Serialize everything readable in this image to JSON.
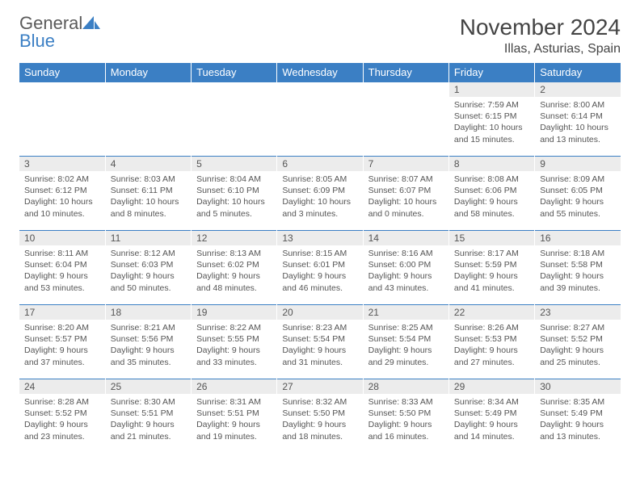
{
  "logo": {
    "word1": "General",
    "word2": "Blue"
  },
  "title": "November 2024",
  "subtitle": "Illas, Asturias, Spain",
  "colors": {
    "header_bg": "#3b7fc4",
    "header_text": "#ffffff",
    "daynum_bg": "#ececec",
    "text": "#555555",
    "row_border": "#3b7fc4",
    "logo_gray": "#5a5a5a",
    "logo_blue": "#3b7fc4"
  },
  "weekdays": [
    "Sunday",
    "Monday",
    "Tuesday",
    "Wednesday",
    "Thursday",
    "Friday",
    "Saturday"
  ],
  "grid": [
    [
      "",
      "",
      "",
      "",
      "",
      {
        "n": "1",
        "sr": "7:59 AM",
        "ss": "6:15 PM",
        "dl": "10 hours and 15 minutes."
      },
      {
        "n": "2",
        "sr": "8:00 AM",
        "ss": "6:14 PM",
        "dl": "10 hours and 13 minutes."
      }
    ],
    [
      {
        "n": "3",
        "sr": "8:02 AM",
        "ss": "6:12 PM",
        "dl": "10 hours and 10 minutes."
      },
      {
        "n": "4",
        "sr": "8:03 AM",
        "ss": "6:11 PM",
        "dl": "10 hours and 8 minutes."
      },
      {
        "n": "5",
        "sr": "8:04 AM",
        "ss": "6:10 PM",
        "dl": "10 hours and 5 minutes."
      },
      {
        "n": "6",
        "sr": "8:05 AM",
        "ss": "6:09 PM",
        "dl": "10 hours and 3 minutes."
      },
      {
        "n": "7",
        "sr": "8:07 AM",
        "ss": "6:07 PM",
        "dl": "10 hours and 0 minutes."
      },
      {
        "n": "8",
        "sr": "8:08 AM",
        "ss": "6:06 PM",
        "dl": "9 hours and 58 minutes."
      },
      {
        "n": "9",
        "sr": "8:09 AM",
        "ss": "6:05 PM",
        "dl": "9 hours and 55 minutes."
      }
    ],
    [
      {
        "n": "10",
        "sr": "8:11 AM",
        "ss": "6:04 PM",
        "dl": "9 hours and 53 minutes."
      },
      {
        "n": "11",
        "sr": "8:12 AM",
        "ss": "6:03 PM",
        "dl": "9 hours and 50 minutes."
      },
      {
        "n": "12",
        "sr": "8:13 AM",
        "ss": "6:02 PM",
        "dl": "9 hours and 48 minutes."
      },
      {
        "n": "13",
        "sr": "8:15 AM",
        "ss": "6:01 PM",
        "dl": "9 hours and 46 minutes."
      },
      {
        "n": "14",
        "sr": "8:16 AM",
        "ss": "6:00 PM",
        "dl": "9 hours and 43 minutes."
      },
      {
        "n": "15",
        "sr": "8:17 AM",
        "ss": "5:59 PM",
        "dl": "9 hours and 41 minutes."
      },
      {
        "n": "16",
        "sr": "8:18 AM",
        "ss": "5:58 PM",
        "dl": "9 hours and 39 minutes."
      }
    ],
    [
      {
        "n": "17",
        "sr": "8:20 AM",
        "ss": "5:57 PM",
        "dl": "9 hours and 37 minutes."
      },
      {
        "n": "18",
        "sr": "8:21 AM",
        "ss": "5:56 PM",
        "dl": "9 hours and 35 minutes."
      },
      {
        "n": "19",
        "sr": "8:22 AM",
        "ss": "5:55 PM",
        "dl": "9 hours and 33 minutes."
      },
      {
        "n": "20",
        "sr": "8:23 AM",
        "ss": "5:54 PM",
        "dl": "9 hours and 31 minutes."
      },
      {
        "n": "21",
        "sr": "8:25 AM",
        "ss": "5:54 PM",
        "dl": "9 hours and 29 minutes."
      },
      {
        "n": "22",
        "sr": "8:26 AM",
        "ss": "5:53 PM",
        "dl": "9 hours and 27 minutes."
      },
      {
        "n": "23",
        "sr": "8:27 AM",
        "ss": "5:52 PM",
        "dl": "9 hours and 25 minutes."
      }
    ],
    [
      {
        "n": "24",
        "sr": "8:28 AM",
        "ss": "5:52 PM",
        "dl": "9 hours and 23 minutes."
      },
      {
        "n": "25",
        "sr": "8:30 AM",
        "ss": "5:51 PM",
        "dl": "9 hours and 21 minutes."
      },
      {
        "n": "26",
        "sr": "8:31 AM",
        "ss": "5:51 PM",
        "dl": "9 hours and 19 minutes."
      },
      {
        "n": "27",
        "sr": "8:32 AM",
        "ss": "5:50 PM",
        "dl": "9 hours and 18 minutes."
      },
      {
        "n": "28",
        "sr": "8:33 AM",
        "ss": "5:50 PM",
        "dl": "9 hours and 16 minutes."
      },
      {
        "n": "29",
        "sr": "8:34 AM",
        "ss": "5:49 PM",
        "dl": "9 hours and 14 minutes."
      },
      {
        "n": "30",
        "sr": "8:35 AM",
        "ss": "5:49 PM",
        "dl": "9 hours and 13 minutes."
      }
    ]
  ],
  "labels": {
    "sunrise": "Sunrise:",
    "sunset": "Sunset:",
    "daylight": "Daylight:"
  }
}
